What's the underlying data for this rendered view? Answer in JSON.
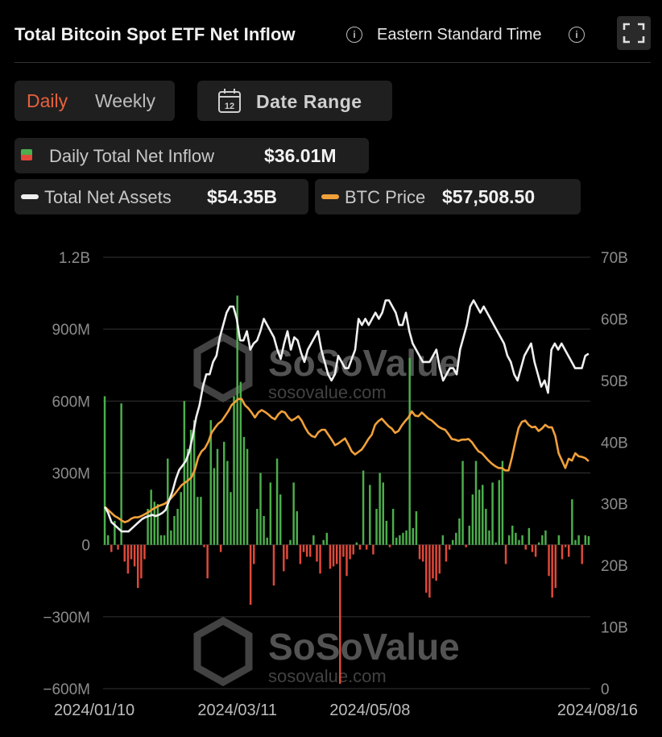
{
  "header": {
    "title": "Total Bitcoin Spot ETF Net Inflow",
    "timezone": "Eastern Standard Time"
  },
  "controls": {
    "daily_label": "Daily",
    "weekly_label": "Weekly",
    "date_range_label": "Date Range",
    "calendar_day": "12"
  },
  "legend": {
    "inflow_label": "Daily Total Net Inflow",
    "inflow_value": "$36.01M",
    "assets_label": "Total Net Assets",
    "assets_value": "$54.35B",
    "price_label": "BTC Price",
    "price_value": "$57,508.50"
  },
  "watermark": {
    "brand": "SoSoValue",
    "url": "sosovalue.com"
  },
  "colors": {
    "positive": "#4cae4c",
    "negative": "#e0493a",
    "assets_line": "#f0f0f0",
    "price_line": "#f0a03a",
    "accent": "#e8603e",
    "grid": "#333333"
  },
  "chart_data": {
    "type": "bar",
    "title": "Total Bitcoin Spot ETF Net Inflow",
    "left_axis": {
      "ticks": [
        "1.2B",
        "900M",
        "600M",
        "300M",
        "0",
        "−300M",
        "−600M"
      ],
      "ylim": [
        -600,
        1200
      ],
      "unit": "M"
    },
    "right_axis": {
      "ticks": [
        "70B",
        "60B",
        "50B",
        "40B",
        "30B",
        "20B",
        "10B",
        "0"
      ],
      "ylim": [
        0,
        70
      ],
      "unit": "B"
    },
    "x_labels": [
      "2024/01/10",
      "2024/03/11",
      "2024/05/08",
      "2024/08/16"
    ],
    "x_label_index": [
      0,
      40,
      80,
      149
    ],
    "series": [
      {
        "name": "Daily Total Net Inflow",
        "kind": "bar",
        "axis": "left",
        "unit": "M",
        "values": [
          620,
          40,
          -30,
          100,
          -20,
          590,
          -70,
          -120,
          -60,
          -90,
          -180,
          -140,
          -60,
          150,
          230,
          180,
          170,
          40,
          40,
          360,
          60,
          120,
          150,
          220,
          600,
          400,
          480,
          520,
          200,
          200,
          -10,
          -140,
          520,
          320,
          400,
          -30,
          430,
          350,
          220,
          620,
          1040,
          680,
          450,
          400,
          -250,
          -80,
          150,
          300,
          120,
          30,
          260,
          -170,
          360,
          210,
          -110,
          -60,
          20,
          260,
          140,
          -80,
          -30,
          -50,
          -50,
          40,
          -70,
          -120,
          20,
          50,
          -100,
          -90,
          -80,
          -580,
          -50,
          -130,
          -60,
          -40,
          10,
          -20,
          310,
          -20,
          250,
          -40,
          150,
          300,
          260,
          100,
          -10,
          150,
          30,
          40,
          50,
          60,
          780,
          70,
          140,
          -60,
          -70,
          -200,
          -220,
          -140,
          -150,
          -120,
          40,
          -70,
          -20,
          20,
          50,
          110,
          350,
          -10,
          80,
          210,
          350,
          230,
          250,
          150,
          60,
          260,
          10,
          270,
          350,
          -80,
          40,
          80,
          50,
          20,
          40,
          -20,
          70,
          -30,
          -50,
          10,
          40,
          60,
          -130,
          -220,
          -180,
          40,
          -60,
          -10,
          -50,
          190,
          20,
          40,
          -80,
          40,
          36
        ]
      },
      {
        "name": "Total Net Assets",
        "kind": "line",
        "axis": "right",
        "unit": "B",
        "values": [
          29.5,
          28.5,
          27,
          26.5,
          26,
          25.5,
          25.5,
          25.5,
          26,
          26.5,
          27,
          27.5,
          27.8,
          28,
          28.2,
          28,
          28.2,
          28.5,
          29,
          30.5,
          32,
          34,
          35.5,
          36.2,
          37,
          38.5,
          41,
          44,
          46,
          49,
          51,
          51,
          53,
          54,
          57,
          59,
          61,
          62,
          62,
          60,
          56.5,
          56.5,
          58,
          55,
          56,
          56.5,
          58,
          60,
          59,
          58,
          57,
          55,
          53.5,
          56,
          58,
          55,
          57,
          56.5,
          54.5,
          53,
          55,
          56,
          57,
          58,
          55,
          53,
          51,
          50,
          51,
          54,
          53,
          52,
          52,
          53.5,
          55,
          60,
          59,
          60,
          59,
          60,
          61,
          60,
          61,
          63,
          63,
          62,
          61,
          59,
          59,
          61,
          58,
          56,
          55,
          54,
          53,
          53,
          53,
          54,
          55,
          52,
          50,
          51,
          52,
          52,
          51,
          55,
          57,
          59,
          62,
          63,
          62,
          61,
          62,
          61,
          60,
          59,
          58,
          57,
          56,
          54,
          53,
          51,
          50,
          52,
          54,
          55,
          56,
          53,
          51,
          49,
          50,
          48,
          55,
          56,
          55,
          56,
          55,
          54,
          53,
          52,
          52,
          52,
          54,
          54.35
        ]
      },
      {
        "name": "BTC Price",
        "kind": "line",
        "axis": "right",
        "unit": "B",
        "values": [
          29.5,
          29,
          28.5,
          28,
          27.7,
          27.3,
          27,
          27.2,
          27.6,
          27.8,
          27.8,
          28,
          28.3,
          28.6,
          29,
          29.3,
          29.6,
          29.8,
          30,
          30.4,
          31,
          31.6,
          32.3,
          33,
          33.4,
          33.8,
          34.3,
          35.5,
          37.5,
          38.5,
          39,
          40,
          41.5,
          42.3,
          43,
          43.4,
          44.2,
          45,
          46,
          46.5,
          47,
          47,
          46,
          45.5,
          44.8,
          44,
          44.8,
          45.2,
          44.9,
          44.5,
          44,
          43.7,
          44.5,
          45,
          44.8,
          44,
          43.5,
          43.8,
          44.2,
          43.5,
          42.4,
          41.5,
          41,
          40.8,
          41.6,
          42,
          42,
          41.2,
          40.4,
          39.5,
          39.8,
          40.2,
          40.6,
          39.6,
          38.5,
          38,
          38.4,
          38.8,
          39.6,
          40.5,
          41.2,
          42.8,
          43.4,
          43.8,
          43.2,
          42.6,
          42.2,
          41.5,
          41.8,
          42.7,
          43.4,
          44,
          45,
          44.3,
          44.2,
          44.8,
          44.3,
          43.8,
          43.5,
          43,
          42.5,
          42.2,
          42,
          41.3,
          40.5,
          40.4,
          40.2,
          40.4,
          40.4,
          40.5,
          40,
          39.2,
          38.5,
          38.2,
          37.6,
          37,
          36.5,
          36.1,
          35.8,
          35.8,
          35.4,
          35.4,
          37.5,
          40,
          42.3,
          43.3,
          43.5,
          42.8,
          42.4,
          42.5,
          41.8,
          42.2,
          42.8,
          42.4,
          42.4,
          41,
          38.2,
          37,
          35.8,
          37.3,
          37,
          38.2,
          37.7,
          37.6,
          37.4,
          36.9
        ]
      }
    ]
  }
}
